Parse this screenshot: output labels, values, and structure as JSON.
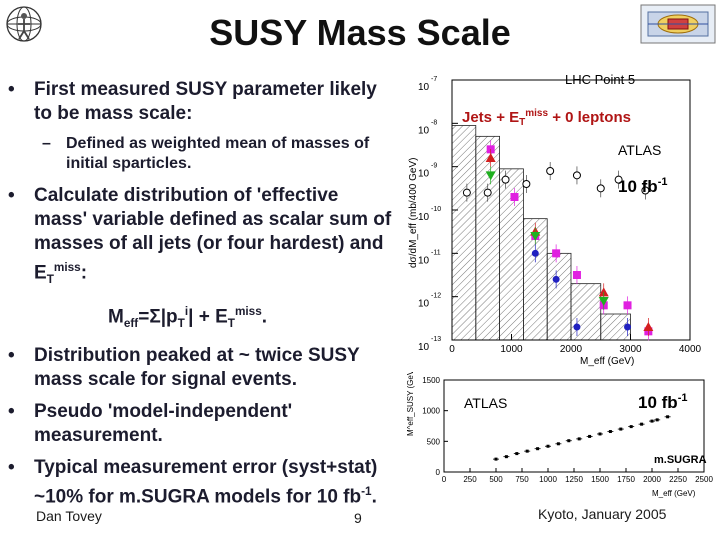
{
  "slide": {
    "title": "SUSY Mass Scale",
    "bullets": {
      "b1": "First measured SUSY parameter likely to be mass scale:",
      "b1_sub": "Defined as weighted mean of masses of initial sparticles.",
      "b2_pre": "Calculate distribution of 'effective mass' variable defined as scalar sum of masses of all jets (or four hardest) and E",
      "b2_sub": "T",
      "b2_sup": "miss",
      "b2_post": ":",
      "formula_m": "M",
      "formula_msub": "eff",
      "formula_mid": "=Σ|p",
      "formula_tsub": "T",
      "formula_isup": "i",
      "formula_mid2": "| + E",
      "formula_tsub2": "T",
      "formula_misssup": "miss",
      "formula_end": ".",
      "b3": "Distribution peaked at ~ twice SUSY mass scale for signal events.",
      "b4": "Pseudo 'model-independent' measurement.",
      "b5_pre": "Typical measurement error (syst+stat) ~10% for m.SUGRA models for 10 fb",
      "b5_sup": "-1",
      "b5_post": "."
    },
    "footer": {
      "author": "Dan Tovey",
      "page": "9",
      "date": "Kyoto, January 2005"
    },
    "bullet_char": "•",
    "dash_char": "–"
  },
  "chart_data": [
    {
      "type": "scatter",
      "title": "LHC Point 5",
      "subtitle_pre": "Jets + E",
      "subtitle_sub": "T",
      "subtitle_sup": "miss",
      "subtitle_post": " + 0 leptons",
      "annotation_experiment": "ATLAS",
      "annotation_lumi": "10 fb",
      "annotation_lumi_sup": "-1",
      "ylabel": "dσ/dM_eff (mb/400 GeV)",
      "xlabel": "M_eff (GeV)",
      "log_y": true,
      "xlim": [
        0,
        4000
      ],
      "ylim_exponent": [
        -13,
        -7
      ],
      "x_tick_labels": [
        "0",
        "1000",
        "2000",
        "3000",
        "4000"
      ],
      "y_tick_exponents": [
        "-7",
        "-8",
        "-9",
        "-10",
        "-11",
        "-12",
        "-13"
      ],
      "y_tick_base": "10",
      "background_histogram_log10": [
        {
          "x": [
            0,
            400
          ],
          "y": -8.05
        },
        {
          "x": [
            400,
            800
          ],
          "y": -8.3
        },
        {
          "x": [
            800,
            1200
          ],
          "y": -9.05
        },
        {
          "x": [
            1200,
            1600
          ],
          "y": -10.2
        },
        {
          "x": [
            1600,
            2000
          ],
          "y": -11.0
        },
        {
          "x": [
            2000,
            2500
          ],
          "y": -11.7
        },
        {
          "x": [
            2500,
            3000
          ],
          "y": -12.4
        },
        {
          "x": [
            3000,
            3500
          ],
          "y": -13.0
        }
      ],
      "series": [
        {
          "marker": "circle-open",
          "color": "#000000",
          "points": [
            [
              250,
              -9.6
            ],
            [
              600,
              -9.6
            ],
            [
              900,
              -9.3
            ],
            [
              1250,
              -9.4
            ],
            [
              1650,
              -9.1
            ],
            [
              2100,
              -9.2
            ],
            [
              2500,
              -9.5
            ],
            [
              2800,
              -9.3
            ],
            [
              3250,
              -9.55
            ]
          ]
        },
        {
          "marker": "square",
          "color": "#e020e0",
          "points": [
            [
              650,
              -8.6
            ],
            [
              1050,
              -9.7
            ],
            [
              1400,
              -10.6
            ],
            [
              1750,
              -11.0
            ],
            [
              2100,
              -11.5
            ],
            [
              2550,
              -12.2
            ],
            [
              2950,
              -12.2
            ],
            [
              3300,
              -12.8
            ]
          ]
        },
        {
          "marker": "triangle-up",
          "color": "#d42020",
          "points": [
            [
              650,
              -8.8
            ],
            [
              1400,
              -10.5
            ],
            [
              2550,
              -11.9
            ],
            [
              3300,
              -12.7
            ]
          ]
        },
        {
          "marker": "triangle-down",
          "color": "#20b020",
          "points": [
            [
              650,
              -9.2
            ],
            [
              1400,
              -10.6
            ],
            [
              2550,
              -12.1
            ]
          ]
        },
        {
          "marker": "circle",
          "color": "#2020c0",
          "points": [
            [
              1400,
              -11.0
            ],
            [
              1750,
              -11.6
            ],
            [
              2100,
              -12.7
            ],
            [
              2950,
              -12.7
            ]
          ]
        }
      ]
    },
    {
      "type": "scatter",
      "annotation_experiment": "ATLAS",
      "annotation_lumi": "10 fb",
      "annotation_lumi_sup": "-1",
      "annotation_model": "m.SUGRA",
      "ylabel": "M^eff_SUSY (GeV)",
      "xlabel": "M_eff (GeV)",
      "xlim": [
        0,
        2500
      ],
      "ylim": [
        0,
        1500
      ],
      "x_tick_labels": [
        "0",
        "250",
        "500",
        "750",
        "1000",
        "1250",
        "1500",
        "1750",
        "2000",
        "2250",
        "2500"
      ],
      "y_tick_labels": [
        "0",
        "500",
        "1000",
        "1500"
      ],
      "points": [
        [
          500,
          210
        ],
        [
          600,
          250
        ],
        [
          700,
          300
        ],
        [
          800,
          340
        ],
        [
          900,
          380
        ],
        [
          1000,
          420
        ],
        [
          1100,
          460
        ],
        [
          1200,
          510
        ],
        [
          1300,
          540
        ],
        [
          1400,
          580
        ],
        [
          1500,
          620
        ],
        [
          1600,
          660
        ],
        [
          1700,
          700
        ],
        [
          1800,
          740
        ],
        [
          1900,
          780
        ],
        [
          2000,
          830
        ],
        [
          2050,
          850
        ],
        [
          2150,
          900
        ]
      ]
    }
  ]
}
